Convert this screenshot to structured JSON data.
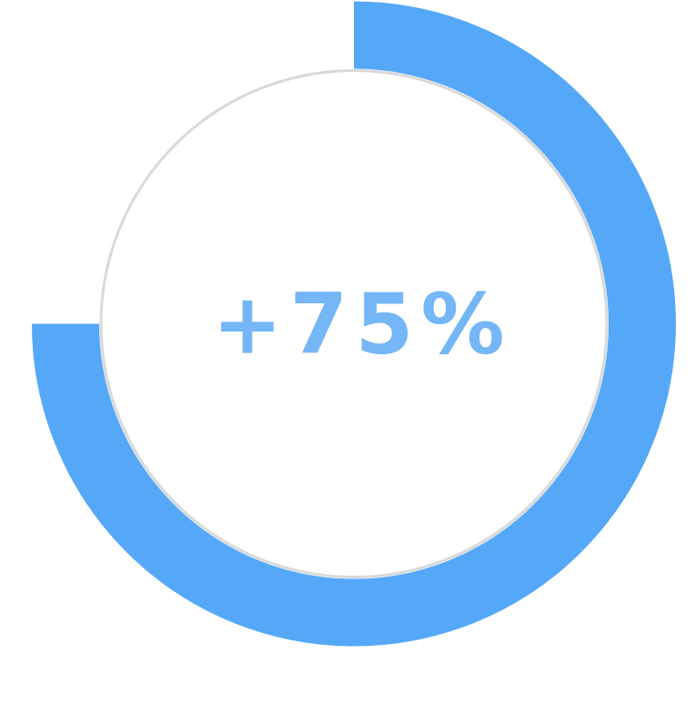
{
  "chart_data": {
    "type": "pie",
    "title": "",
    "center_label": "+75%",
    "progress_fraction": 0.75,
    "start_angle": "top",
    "direction": "clockwise",
    "colors": {
      "progress": "#55a8f7",
      "track_outline": "#d9d9d9",
      "label": "#75b6f6",
      "background": "#ffffff"
    }
  }
}
